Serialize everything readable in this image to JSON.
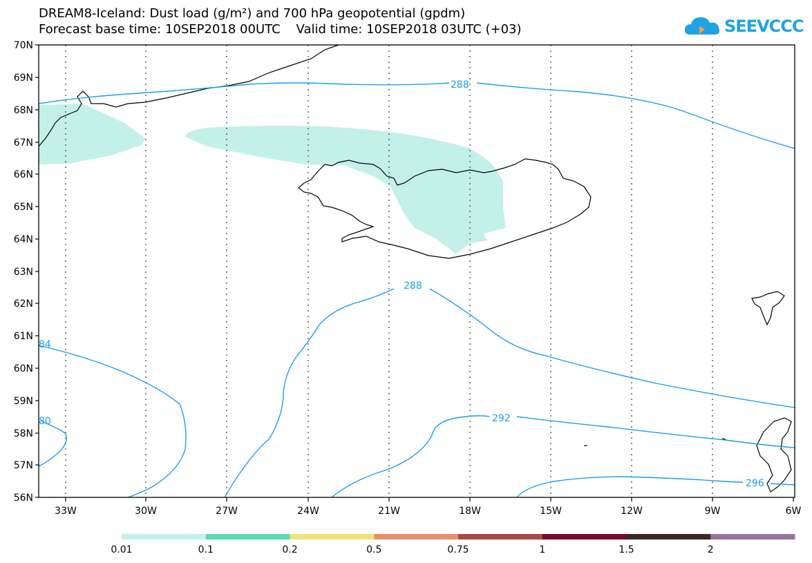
{
  "title_line1": "DREAM8-Iceland: Dust load (g/m²) and 700 hPa geopotential (gpdm)",
  "title_line2": "Forecast base time: 10SEP2018 00UTC    Valid time: 10SEP2018 03UTC (+03)",
  "logo_text": "SEEVCCC",
  "colors": {
    "contour": "#1a9ee8",
    "dust_low": "#c4f0ea",
    "grid": "#444444",
    "coast": "#000000"
  },
  "lat_labels": [
    "70N",
    "69N",
    "68N",
    "67N",
    "66N",
    "65N",
    "64N",
    "63N",
    "62N",
    "61N",
    "60N",
    "59N",
    "58N",
    "57N",
    "56N"
  ],
  "lon_labels": [
    "33W",
    "30W",
    "27W",
    "24W",
    "21W",
    "18W",
    "15W",
    "12W",
    "9W",
    "6W"
  ],
  "contour_labels": [
    "288",
    "288",
    "292",
    "296",
    "84",
    "80"
  ],
  "colorbar": {
    "colors": [
      "#c4f0ea",
      "#5ed9b5",
      "#f0e37a",
      "#e8926a",
      "#a94a48",
      "#7a0a2e",
      "#3a2a22",
      "#9a72a0"
    ],
    "labels": [
      "0.01",
      "0.1",
      "0.2",
      "0.5",
      "0.75",
      "1",
      "1.5",
      "2"
    ]
  }
}
